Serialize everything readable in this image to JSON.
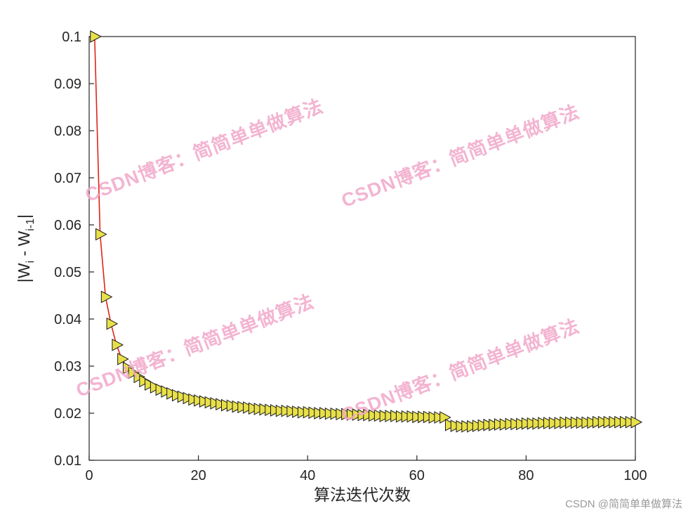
{
  "page": {
    "background": "#ffffff"
  },
  "watermark": {
    "text": "CSDN博客：简简单单做算法",
    "color": "#f2a8c9"
  },
  "credit": {
    "text": "CSDN @简简单单做算法"
  },
  "chart_data": {
    "type": "line",
    "title": "",
    "xlabel": "算法迭代次数",
    "ylabel": "|W_i - W_i-1|",
    "ylabel_parts": [
      {
        "t": "|W",
        "sub": false
      },
      {
        "t": "i",
        "sub": true
      },
      {
        "t": " - W",
        "sub": false
      },
      {
        "t": "i-1",
        "sub": true
      },
      {
        "t": "|",
        "sub": false
      }
    ],
    "xlim": [
      0,
      100
    ],
    "ylim": [
      0.01,
      0.1
    ],
    "xticks": [
      0,
      20,
      40,
      60,
      80,
      100
    ],
    "ytick_labels": [
      "0.01",
      "0.02",
      "0.03",
      "0.04",
      "0.05",
      "0.06",
      "0.07",
      "0.08",
      "0.09",
      "0.1"
    ],
    "grid": false,
    "legend": null,
    "axis_color": "#262626",
    "line_color": "#dd2418",
    "marker": {
      "shape": "triangle-right",
      "fill": "#e8e04a",
      "stroke": "#1a1a1a"
    },
    "x": [
      1,
      2,
      3,
      4,
      5,
      6,
      7,
      8,
      9,
      10,
      11,
      12,
      13,
      14,
      15,
      16,
      17,
      18,
      19,
      20,
      21,
      22,
      23,
      24,
      25,
      26,
      27,
      28,
      29,
      30,
      31,
      32,
      33,
      34,
      35,
      36,
      37,
      38,
      39,
      40,
      41,
      42,
      43,
      44,
      45,
      46,
      47,
      48,
      49,
      50,
      51,
      52,
      53,
      54,
      55,
      56,
      57,
      58,
      59,
      60,
      61,
      62,
      63,
      64,
      65,
      66,
      67,
      68,
      69,
      70,
      71,
      72,
      73,
      74,
      75,
      76,
      77,
      78,
      79,
      80,
      81,
      82,
      83,
      84,
      85,
      86,
      87,
      88,
      89,
      90,
      91,
      92,
      93,
      94,
      95,
      96,
      97,
      98,
      99,
      100
    ],
    "y": [
      0.1,
      0.058,
      0.0447,
      0.039,
      0.0345,
      0.0315,
      0.0296,
      0.0286,
      0.0277,
      0.0268,
      0.0261,
      0.0255,
      0.025,
      0.0246,
      0.0242,
      0.0238,
      0.0235,
      0.0232,
      0.0229,
      0.0227,
      0.0225,
      0.0223,
      0.0221,
      0.0219,
      0.0217,
      0.0216,
      0.0214,
      0.0213,
      0.0212,
      0.021,
      0.0209,
      0.0208,
      0.0207,
      0.0206,
      0.0205,
      0.0205,
      0.0204,
      0.0203,
      0.0202,
      0.0202,
      0.0201,
      0.02,
      0.02,
      0.0199,
      0.0199,
      0.0198,
      0.0198,
      0.0197,
      0.0197,
      0.0196,
      0.0196,
      0.0195,
      0.0195,
      0.0194,
      0.0194,
      0.0194,
      0.0193,
      0.0193,
      0.0193,
      0.0192,
      0.0192,
      0.0192,
      0.0191,
      0.0191,
      0.0191,
      0.0175,
      0.0173,
      0.0172,
      0.0172,
      0.0172,
      0.0173,
      0.0174,
      0.0175,
      0.0175,
      0.0176,
      0.0176,
      0.0177,
      0.0177,
      0.0177,
      0.0178,
      0.0178,
      0.0178,
      0.0179,
      0.0179,
      0.0179,
      0.0179,
      0.018,
      0.018,
      0.018,
      0.018,
      0.018,
      0.018,
      0.0181,
      0.0181,
      0.0181,
      0.0181,
      0.0181,
      0.0181,
      0.0181,
      0.0181
    ]
  }
}
